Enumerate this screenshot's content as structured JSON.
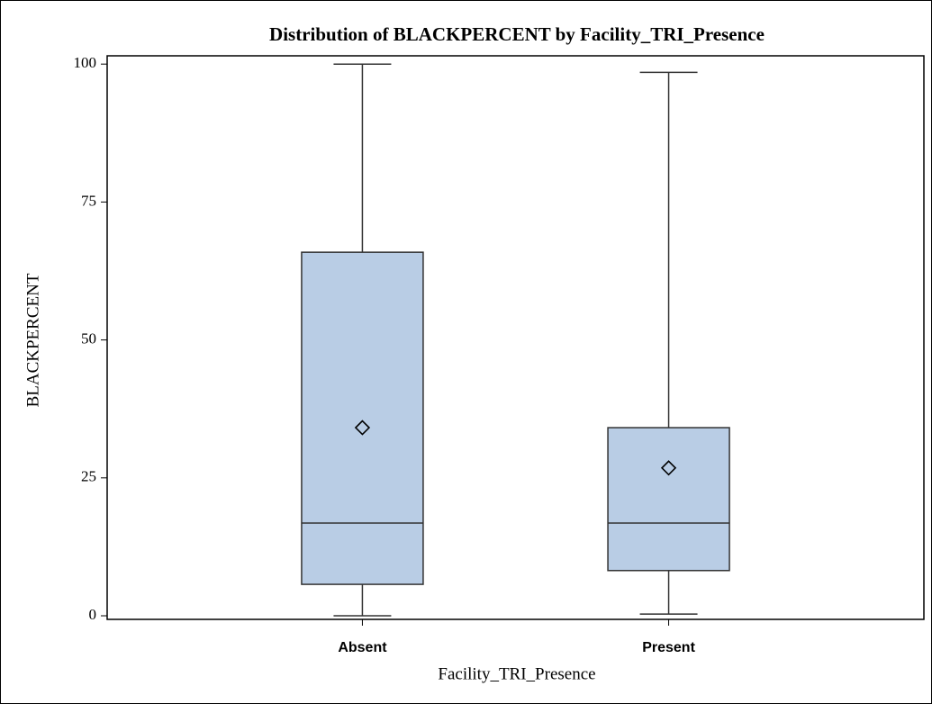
{
  "chart_data": {
    "type": "box",
    "title": "Distribution of BLACKPERCENT by Facility_TRI_Presence",
    "x_label": "Facility_TRI_Presence",
    "y_label": "BLACKPERCENT",
    "categories": [
      "Absent",
      "Present"
    ],
    "boxes": [
      {
        "min": 0,
        "q1": 5.7,
        "median": 16.8,
        "q3": 65.9,
        "max": 100,
        "mean": 34.1
      },
      {
        "min": 0.3,
        "q1": 8.2,
        "median": 16.8,
        "q3": 34.1,
        "max": 98.5,
        "mean": 26.8
      }
    ],
    "color": "#b9cde5",
    "ylim": [
      -0.65,
      101.5
    ],
    "yticks": [
      0,
      25,
      50,
      75,
      100
    ]
  }
}
